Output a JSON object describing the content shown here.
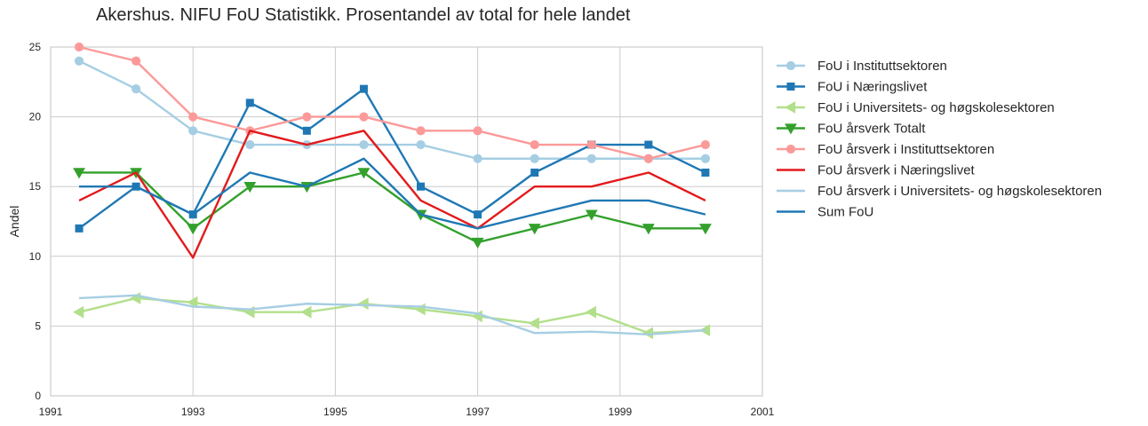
{
  "chart_data": {
    "type": "line",
    "title": "Akershus. NIFU FoU Statistikk. Prosentandel av total for hele landet",
    "xlabel": "",
    "ylabel": "Andel",
    "xlim": [
      1991,
      2001
    ],
    "ylim": [
      0,
      25
    ],
    "xticks": [
      1991,
      1993,
      1995,
      1997,
      1999,
      2001
    ],
    "yticks": [
      0,
      5,
      10,
      15,
      20,
      25
    ],
    "grid": true,
    "legend_position": "right-outside",
    "x": [
      1991.4,
      1992.2,
      1993.0,
      1993.8,
      1994.6,
      1995.4,
      1996.2,
      1997.0,
      1997.8,
      1998.6,
      1999.4,
      2000.2
    ],
    "series": [
      {
        "name": "FoU i Instituttsektoren",
        "color": "#a6cee3",
        "marker": "circle",
        "values": [
          24,
          22,
          19,
          18,
          18,
          18,
          18,
          17,
          17,
          17,
          17,
          17
        ]
      },
      {
        "name": "FoU i Næringslivet",
        "color": "#1f78b4",
        "marker": "square",
        "values": [
          12,
          15,
          13,
          21,
          19,
          22,
          15,
          13,
          16,
          18,
          18,
          16
        ]
      },
      {
        "name": "FoU i Universitets- og høgskolesektoren",
        "color": "#b2df8a",
        "marker": "triangle-left",
        "values": [
          6,
          7,
          6.7,
          6,
          6,
          6.6,
          6.2,
          5.7,
          5.2,
          6,
          4.5,
          4.7
        ]
      },
      {
        "name": "FoU årsverk Totalt",
        "color": "#33a02c",
        "marker": "triangle-down",
        "values": [
          16,
          16,
          12,
          15,
          15,
          16,
          13,
          11,
          12,
          13,
          12,
          12
        ]
      },
      {
        "name": "FoU årsverk i Instituttsektoren",
        "color": "#fb9a99",
        "marker": "circle",
        "values": [
          25,
          24,
          20,
          19,
          20,
          20,
          19,
          19,
          18,
          18,
          17,
          18
        ]
      },
      {
        "name": "FoU årsverk i Næringslivet",
        "color": "#e31a1c",
        "marker": "none",
        "values": [
          14,
          16,
          9.9,
          19,
          18,
          19,
          14,
          12,
          15,
          15,
          16,
          14
        ]
      },
      {
        "name": "FoU årsverk i Universitets- og høgskolesektoren",
        "color": "#a6cee3",
        "marker": "none",
        "values": [
          7,
          7.2,
          6.4,
          6.2,
          6.6,
          6.5,
          6.4,
          5.9,
          4.5,
          4.6,
          4.4,
          4.7
        ]
      },
      {
        "name": "Sum FoU",
        "color": "#1f78b4",
        "marker": "none",
        "values": [
          15,
          15,
          13,
          16,
          15,
          17,
          13,
          12,
          13,
          14,
          14,
          13
        ]
      }
    ]
  }
}
